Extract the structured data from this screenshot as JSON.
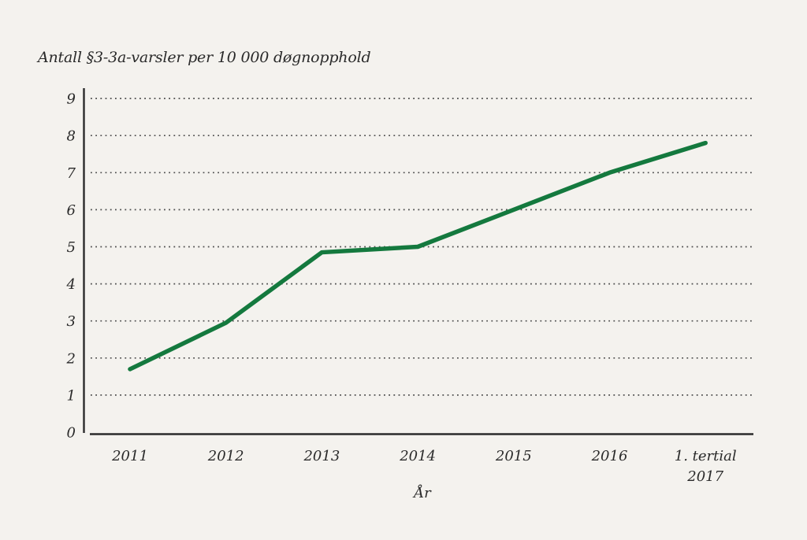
{
  "chart_data": {
    "type": "line",
    "title": "Antall §3-3a-varsler per 10 000 døgnopphold",
    "xlabel": "År",
    "ylabel": "",
    "categories": [
      "2011",
      "2012",
      "2013",
      "2014",
      "2015",
      "2016",
      "1. tertial\n2017"
    ],
    "values": [
      1.7,
      2.95,
      4.85,
      5.0,
      6.0,
      7.0,
      7.8
    ],
    "ylim": [
      0,
      9
    ],
    "ytick_step": 1,
    "yticks": [
      0,
      1,
      2,
      3,
      4,
      5,
      6,
      7,
      8,
      9
    ],
    "grid": "dotted-horizontal",
    "legend": "none",
    "line_color": "#14793e",
    "axis_color": "#2b2b2b",
    "grid_color": "#4d4d4d",
    "background_color": "#f4f2ee",
    "text_color": "#2a2a2a"
  }
}
